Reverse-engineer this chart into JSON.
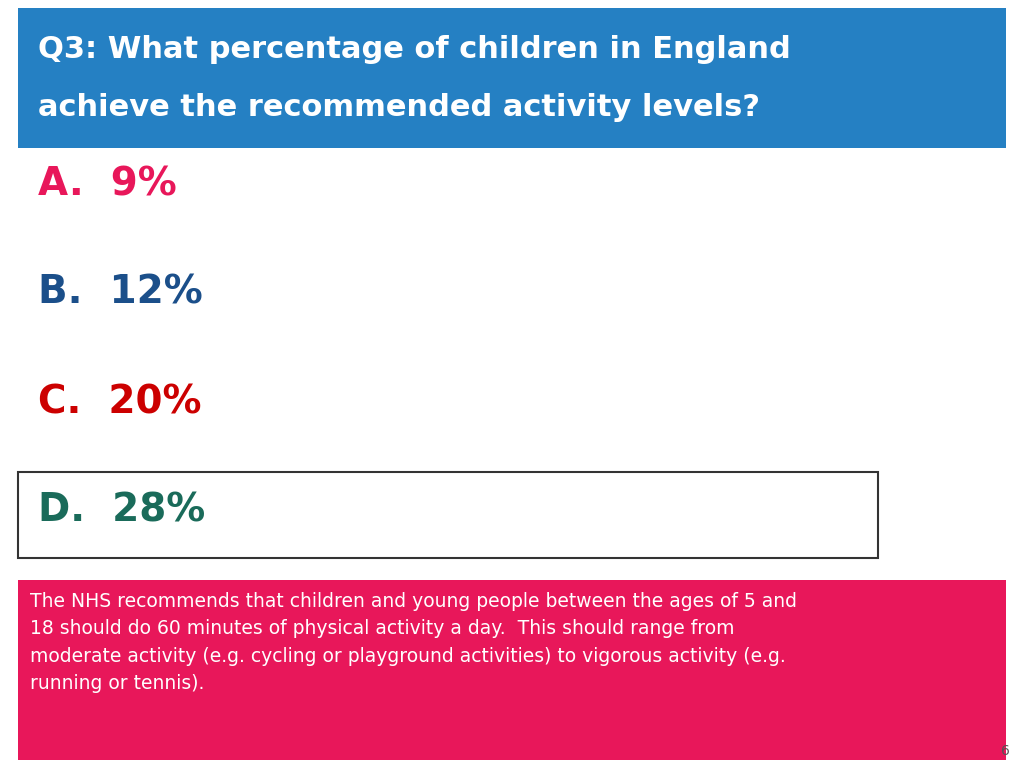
{
  "title_line1": "Q3: What percentage of children in England",
  "title_line2": "achieve the recommended activity levels?",
  "title_bg_color": "#2580C3",
  "title_text_color": "#FFFFFF",
  "options": [
    "A.  9%",
    "B.  12%",
    "C.  20%",
    "D.  28%"
  ],
  "option_colors": [
    "#E8175A",
    "#1B4F8A",
    "#CC0000",
    "#1A6B5A"
  ],
  "answer_option_index": 3,
  "answer_box_color": "#FFFFFF",
  "answer_box_border": "#333333",
  "footnote_text": "The NHS recommends that children and young people between the ages of 5 and\n18 should do 60 minutes of physical activity a day.  This should range from\nmoderate activity (e.g. cycling or playground activities) to vigorous activity (e.g.\nrunning or tennis).",
  "footnote_bg_color": "#E8175A",
  "footnote_text_color": "#FFFFFF",
  "page_number": "6",
  "bg_color": "#FFFFFF"
}
